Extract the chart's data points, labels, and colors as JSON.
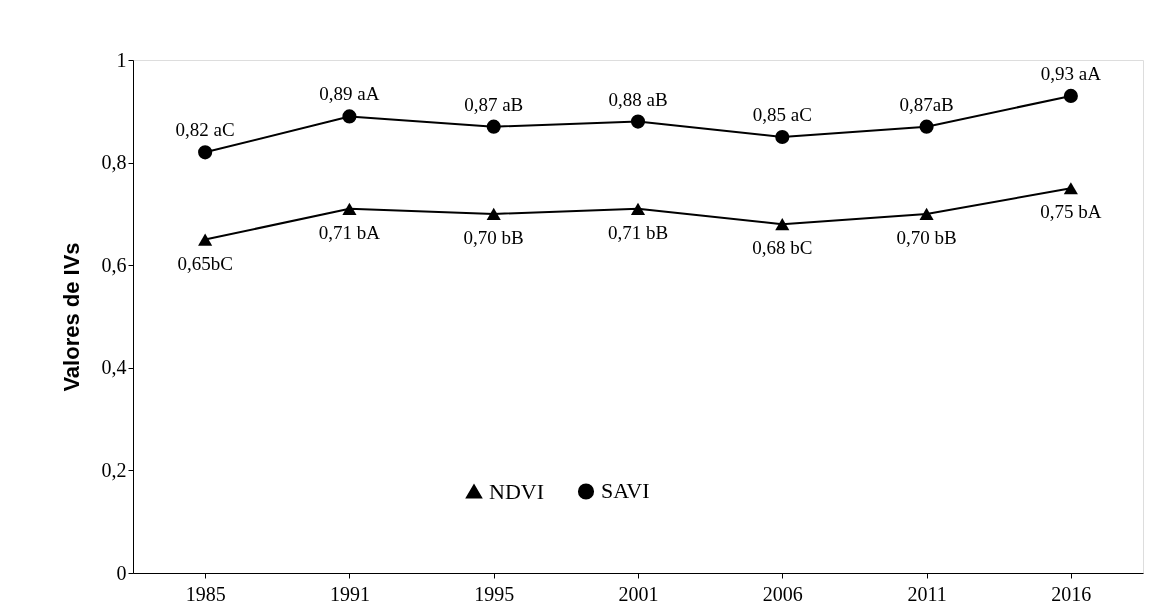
{
  "chart_data": {
    "type": "line",
    "ylabel": "Valores de IVs",
    "categories": [
      "1985",
      "1991",
      "1995",
      "2001",
      "2006",
      "2011",
      "2016"
    ],
    "series": [
      {
        "name": "NDVI",
        "color": "#000000",
        "marker": "triangle",
        "values": [
          0.65,
          0.71,
          0.7,
          0.71,
          0.68,
          0.7,
          0.75
        ],
        "value_labels": [
          "0,65bC",
          "0,71 bA",
          "0,70 bB",
          "0,71 bB",
          "0,68 bC",
          "0,70 bB",
          "0,75 bA"
        ]
      },
      {
        "name": "SAVI",
        "color": "#000000",
        "marker": "circle",
        "values": [
          0.82,
          0.89,
          0.87,
          0.88,
          0.85,
          0.87,
          0.93
        ],
        "value_labels": [
          "0,82 aC",
          "0,89 aA",
          "0,87 aB",
          "0,88 aB",
          "0,85 aC",
          "0,87aB",
          "0,93 aA"
        ]
      }
    ],
    "ylim": [
      0,
      1
    ],
    "yticks": [
      0,
      {
        "value": 0.2,
        "label": "0,2"
      },
      {
        "value": 0.4,
        "label": "0,4"
      },
      {
        "value": 0.6,
        "label": "0,6"
      },
      {
        "value": 0.8,
        "label": "0,8"
      },
      1
    ],
    "grid": false,
    "legend": "bottom",
    "line_style": "solid"
  }
}
